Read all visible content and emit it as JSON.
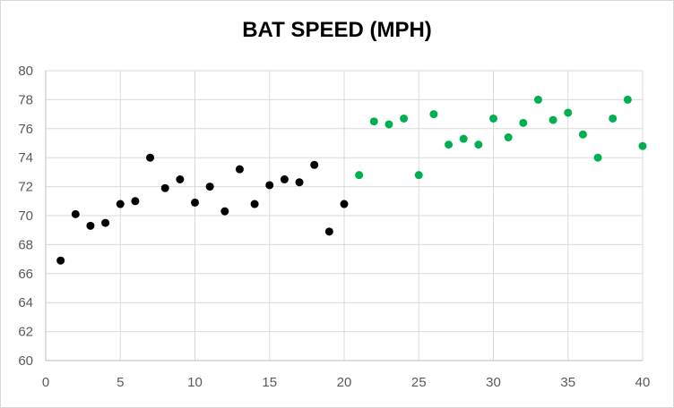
{
  "chart_data": {
    "type": "scatter",
    "title": "BAT SPEED (MPH)",
    "xlim": [
      0,
      40
    ],
    "ylim": [
      60,
      80
    ],
    "x_ticks": [
      0,
      5,
      10,
      15,
      20,
      25,
      30,
      35,
      40
    ],
    "y_ticks": [
      60,
      62,
      64,
      66,
      68,
      70,
      72,
      74,
      76,
      78,
      80
    ],
    "grid": "major gridlines on both axes",
    "series": [
      {
        "color": "#000000",
        "points": [
          [
            1,
            66.9
          ],
          [
            2,
            70.1
          ],
          [
            3,
            69.3
          ],
          [
            4,
            69.5
          ],
          [
            5,
            70.8
          ],
          [
            6,
            71.0
          ],
          [
            7,
            74.0
          ],
          [
            8,
            71.9
          ],
          [
            9,
            72.5
          ],
          [
            10,
            70.9
          ],
          [
            11,
            72.0
          ],
          [
            12,
            70.3
          ],
          [
            13,
            73.2
          ],
          [
            14,
            70.8
          ],
          [
            15,
            72.1
          ],
          [
            16,
            72.5
          ],
          [
            17,
            72.3
          ],
          [
            18,
            73.5
          ],
          [
            19,
            68.9
          ],
          [
            20,
            70.8
          ]
        ]
      },
      {
        "color": "#00b050",
        "points": [
          [
            21,
            72.8
          ],
          [
            22,
            76.5
          ],
          [
            23,
            76.3
          ],
          [
            24,
            76.7
          ],
          [
            25,
            72.8
          ],
          [
            26,
            77.0
          ],
          [
            27,
            74.9
          ],
          [
            28,
            75.3
          ],
          [
            29,
            74.9
          ],
          [
            30,
            76.7
          ],
          [
            31,
            75.4
          ],
          [
            32,
            76.4
          ],
          [
            33,
            78.0
          ],
          [
            34,
            76.6
          ],
          [
            35,
            77.1
          ],
          [
            36,
            75.6
          ],
          [
            37,
            74.0
          ],
          [
            38,
            76.7
          ],
          [
            39,
            78.0
          ],
          [
            40,
            74.8
          ]
        ]
      }
    ]
  }
}
